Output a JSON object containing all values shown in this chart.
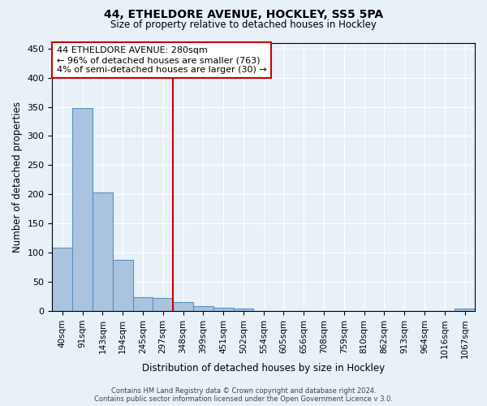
{
  "title1": "44, ETHELDORE AVENUE, HOCKLEY, SS5 5PA",
  "title2": "Size of property relative to detached houses in Hockley",
  "xlabel": "Distribution of detached houses by size in Hockley",
  "ylabel": "Number of detached properties",
  "bar_labels": [
    "40sqm",
    "91sqm",
    "143sqm",
    "194sqm",
    "245sqm",
    "297sqm",
    "348sqm",
    "399sqm",
    "451sqm",
    "502sqm",
    "554sqm",
    "605sqm",
    "656sqm",
    "708sqm",
    "759sqm",
    "810sqm",
    "862sqm",
    "913sqm",
    "964sqm",
    "1016sqm",
    "1067sqm"
  ],
  "bar_values": [
    108,
    348,
    203,
    88,
    24,
    23,
    15,
    8,
    6,
    5,
    0,
    0,
    0,
    0,
    0,
    0,
    0,
    0,
    0,
    0,
    5
  ],
  "bar_color": "#aac4e0",
  "bar_edge_color": "#5a8fc0",
  "bg_color": "#e8f0f8",
  "grid_color": "#ffffff",
  "vline_index": 5.5,
  "vline_color": "#cc0000",
  "annotation_line1": "44 ETHELDORE AVENUE: 280sqm",
  "annotation_line2": "← 96% of detached houses are smaller (763)",
  "annotation_line3": "4% of semi-detached houses are larger (30) →",
  "annotation_box_color": "#ffffff",
  "annotation_box_edge": "#cc0000",
  "annotation_fontsize": 8.0,
  "ylim": [
    0,
    460
  ],
  "yticks": [
    0,
    50,
    100,
    150,
    200,
    250,
    300,
    350,
    400,
    450
  ],
  "footer1": "Contains HM Land Registry data © Crown copyright and database right 2024.",
  "footer2": "Contains public sector information licensed under the Open Government Licence v 3.0."
}
